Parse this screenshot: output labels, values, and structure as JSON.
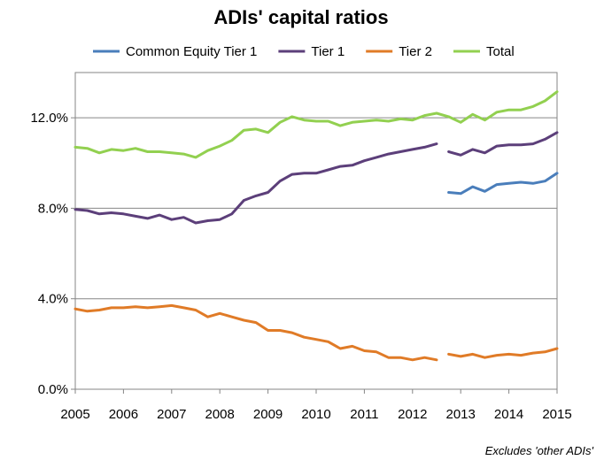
{
  "chart_data": {
    "type": "line",
    "title": "ADIs' capital ratios",
    "note": "Excludes 'other ADIs'",
    "xlabel": "",
    "ylabel": "",
    "xlim": [
      2005,
      2015
    ],
    "ylim": [
      0,
      14
    ],
    "y_ticks": [
      0,
      4,
      8,
      12
    ],
    "y_tick_labels": [
      "0.0%",
      "4.0%",
      "8.0%",
      "12.0%"
    ],
    "x_ticks": [
      2005,
      2006,
      2007,
      2008,
      2009,
      2010,
      2011,
      2012,
      2013,
      2014,
      2015
    ],
    "x_tick_labels": [
      "2005",
      "2006",
      "2007",
      "2008",
      "2009",
      "2010",
      "2011",
      "2012",
      "2013",
      "2014",
      "2015"
    ],
    "grid": "horizontal",
    "legend_position": "top",
    "series": [
      {
        "name": "Common Equity Tier 1",
        "color": "#4A7EBB",
        "segments": [
          [
            [
              2012.75,
              8.7
            ],
            [
              2013.0,
              8.65
            ],
            [
              2013.25,
              8.95
            ],
            [
              2013.5,
              8.75
            ],
            [
              2013.75,
              9.05
            ],
            [
              2014.0,
              9.1
            ],
            [
              2014.25,
              9.15
            ],
            [
              2014.5,
              9.1
            ],
            [
              2014.75,
              9.2
            ],
            [
              2015.0,
              9.55
            ]
          ]
        ]
      },
      {
        "name": "Tier 1",
        "color": "#5C3F7A",
        "segments": [
          [
            [
              2005.0,
              7.95
            ],
            [
              2005.25,
              7.9
            ],
            [
              2005.5,
              7.75
            ],
            [
              2005.75,
              7.8
            ],
            [
              2006.0,
              7.75
            ],
            [
              2006.25,
              7.65
            ],
            [
              2006.5,
              7.55
            ],
            [
              2006.75,
              7.7
            ],
            [
              2007.0,
              7.5
            ],
            [
              2007.25,
              7.6
            ],
            [
              2007.5,
              7.35
            ],
            [
              2007.75,
              7.45
            ],
            [
              2008.0,
              7.5
            ],
            [
              2008.25,
              7.75
            ],
            [
              2008.5,
              8.35
            ],
            [
              2008.75,
              8.55
            ],
            [
              2009.0,
              8.7
            ],
            [
              2009.25,
              9.2
            ],
            [
              2009.5,
              9.5
            ],
            [
              2009.75,
              9.55
            ],
            [
              2010.0,
              9.55
            ],
            [
              2010.25,
              9.7
            ],
            [
              2010.5,
              9.85
            ],
            [
              2010.75,
              9.9
            ],
            [
              2011.0,
              10.1
            ],
            [
              2011.25,
              10.25
            ],
            [
              2011.5,
              10.4
            ],
            [
              2011.75,
              10.5
            ],
            [
              2012.0,
              10.6
            ],
            [
              2012.25,
              10.7
            ],
            [
              2012.5,
              10.85
            ]
          ],
          [
            [
              2012.75,
              10.5
            ],
            [
              2013.0,
              10.35
            ],
            [
              2013.25,
              10.6
            ],
            [
              2013.5,
              10.45
            ],
            [
              2013.75,
              10.75
            ],
            [
              2014.0,
              10.8
            ],
            [
              2014.25,
              10.8
            ],
            [
              2014.5,
              10.85
            ],
            [
              2014.75,
              11.05
            ],
            [
              2015.0,
              11.35
            ]
          ]
        ]
      },
      {
        "name": "Tier 2",
        "color": "#E07B27",
        "segments": [
          [
            [
              2005.0,
              3.55
            ],
            [
              2005.25,
              3.45
            ],
            [
              2005.5,
              3.5
            ],
            [
              2005.75,
              3.6
            ],
            [
              2006.0,
              3.6
            ],
            [
              2006.25,
              3.65
            ],
            [
              2006.5,
              3.6
            ],
            [
              2006.75,
              3.65
            ],
            [
              2007.0,
              3.7
            ],
            [
              2007.25,
              3.6
            ],
            [
              2007.5,
              3.5
            ],
            [
              2007.75,
              3.2
            ],
            [
              2008.0,
              3.35
            ],
            [
              2008.25,
              3.2
            ],
            [
              2008.5,
              3.05
            ],
            [
              2008.75,
              2.95
            ],
            [
              2009.0,
              2.6
            ],
            [
              2009.25,
              2.6
            ],
            [
              2009.5,
              2.5
            ],
            [
              2009.75,
              2.3
            ],
            [
              2010.0,
              2.2
            ],
            [
              2010.25,
              2.1
            ],
            [
              2010.5,
              1.8
            ],
            [
              2010.75,
              1.9
            ],
            [
              2011.0,
              1.7
            ],
            [
              2011.25,
              1.65
            ],
            [
              2011.5,
              1.4
            ],
            [
              2011.75,
              1.4
            ],
            [
              2012.0,
              1.3
            ],
            [
              2012.25,
              1.4
            ],
            [
              2012.5,
              1.3
            ]
          ],
          [
            [
              2012.75,
              1.55
            ],
            [
              2013.0,
              1.45
            ],
            [
              2013.25,
              1.55
            ],
            [
              2013.5,
              1.4
            ],
            [
              2013.75,
              1.5
            ],
            [
              2014.0,
              1.55
            ],
            [
              2014.25,
              1.5
            ],
            [
              2014.5,
              1.6
            ],
            [
              2014.75,
              1.65
            ],
            [
              2015.0,
              1.8
            ]
          ]
        ]
      },
      {
        "name": "Total",
        "color": "#92D050",
        "segments": [
          [
            [
              2005.0,
              10.7
            ],
            [
              2005.25,
              10.65
            ],
            [
              2005.5,
              10.45
            ],
            [
              2005.75,
              10.6
            ],
            [
              2006.0,
              10.55
            ],
            [
              2006.25,
              10.65
            ],
            [
              2006.5,
              10.5
            ],
            [
              2006.75,
              10.5
            ],
            [
              2007.0,
              10.45
            ],
            [
              2007.25,
              10.4
            ],
            [
              2007.5,
              10.25
            ],
            [
              2007.75,
              10.55
            ],
            [
              2008.0,
              10.75
            ],
            [
              2008.25,
              11.0
            ],
            [
              2008.5,
              11.45
            ],
            [
              2008.75,
              11.5
            ],
            [
              2009.0,
              11.35
            ],
            [
              2009.25,
              11.8
            ],
            [
              2009.5,
              12.05
            ],
            [
              2009.75,
              11.9
            ],
            [
              2010.0,
              11.85
            ],
            [
              2010.25,
              11.85
            ],
            [
              2010.5,
              11.65
            ],
            [
              2010.75,
              11.8
            ],
            [
              2011.0,
              11.85
            ],
            [
              2011.25,
              11.9
            ],
            [
              2011.5,
              11.85
            ],
            [
              2011.75,
              11.95
            ],
            [
              2012.0,
              11.9
            ],
            [
              2012.25,
              12.1
            ],
            [
              2012.5,
              12.2
            ],
            [
              2012.75,
              12.05
            ],
            [
              2013.0,
              11.8
            ],
            [
              2013.25,
              12.15
            ],
            [
              2013.5,
              11.9
            ],
            [
              2013.75,
              12.25
            ],
            [
              2014.0,
              12.35
            ],
            [
              2014.25,
              12.35
            ],
            [
              2014.5,
              12.5
            ],
            [
              2014.75,
              12.75
            ],
            [
              2015.0,
              13.15
            ]
          ]
        ]
      }
    ]
  }
}
